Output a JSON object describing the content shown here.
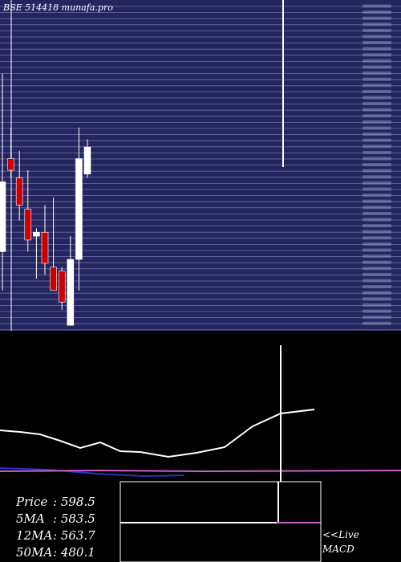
{
  "header": {
    "text": "BSE 514418 munafa.pro"
  },
  "colors": {
    "panel_bg": "#24245e",
    "grid": "#6e6ea8",
    "bull": "#ffffff",
    "bear": "#cc0000",
    "macd": "#ffffff",
    "signal": "#c862c8",
    "blue_line": "#2f2fc0"
  },
  "stats": [
    {
      "label": "Price",
      "value": ": 598.5"
    },
    {
      "label": "5MA",
      "value": ": 583.5"
    },
    {
      "label": "12MA",
      "value": ": 563.7"
    },
    {
      "label": "50MA",
      "value": ": 480.1"
    }
  ],
  "live_label": "<<Live",
  "macd_label": "MACD",
  "chart_data": {
    "type": "candlestick",
    "title": "BSE 514418 munafa.pro",
    "ohlc_relative_scale": [
      0,
      100
    ],
    "candles": [
      {
        "dir": "up",
        "open": 10,
        "high": 56,
        "low": 0,
        "close": 28
      },
      {
        "dir": "down",
        "open": 34,
        "high": 42,
        "low": 29,
        "close": 31
      },
      {
        "dir": "down",
        "open": 29,
        "high": 36,
        "low": 18,
        "close": 22
      },
      {
        "dir": "down",
        "open": 21,
        "high": 31,
        "low": 10,
        "close": 13
      },
      {
        "dir": "up",
        "open": 14,
        "high": 16,
        "low": 3,
        "close": 15
      },
      {
        "dir": "down",
        "open": 15,
        "high": 22,
        "low": 4,
        "close": 7
      },
      {
        "dir": "down",
        "open": 6,
        "high": 24,
        "low": 0,
        "close": 0
      },
      {
        "dir": "down",
        "open": 5,
        "high": 6,
        "low": -5,
        "close": -3
      },
      {
        "dir": "up",
        "open": -9,
        "high": 14,
        "low": -9,
        "close": 8
      },
      {
        "dir": "up",
        "open": 8,
        "high": 42,
        "low": 0,
        "close": 34
      },
      {
        "dir": "up",
        "open": 30,
        "high": 39,
        "low": 29,
        "close": 37
      }
    ],
    "macd_series": [
      {
        "name": "MACD",
        "values": [
          60,
          58,
          55,
          47,
          38,
          45,
          34,
          33,
          27,
          32,
          39,
          65,
          81,
          86
        ]
      },
      {
        "name": "signal",
        "values": [
          32,
          32,
          31,
          31,
          30,
          30,
          29,
          29,
          30,
          30,
          31,
          31,
          31,
          31
        ]
      }
    ]
  }
}
